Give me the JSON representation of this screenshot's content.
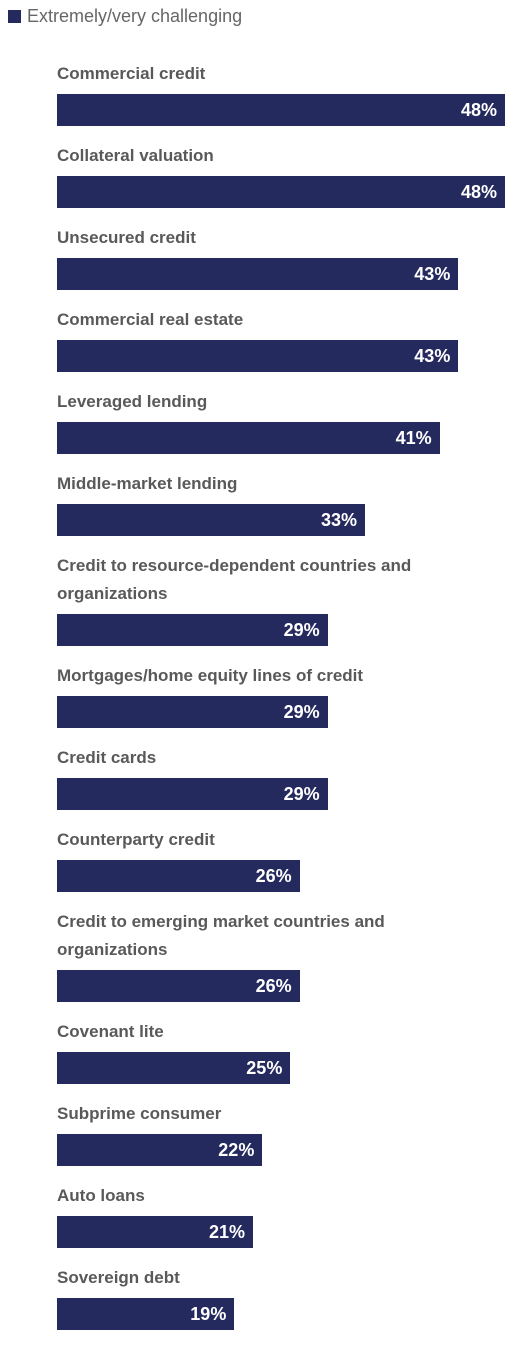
{
  "chart_data": {
    "type": "bar",
    "orientation": "horizontal",
    "categories": [
      "Commercial credit",
      "Collateral valuation",
      "Unsecured credit",
      "Commercial real estate",
      "Leveraged lending",
      "Middle-market lending",
      "Credit to resource-dependent countries and organizations",
      "Mortgages/home equity lines of credit",
      "Credit cards",
      "Counterparty credit",
      "Credit to emerging market countries and organizations",
      "Covenant lite",
      "Subprime consumer",
      "Auto loans",
      "Sovereign debt"
    ],
    "series": [
      {
        "name": "Extremely/very challenging",
        "color": "#252a5e",
        "values": [
          48,
          48,
          43,
          43,
          41,
          33,
          29,
          29,
          29,
          26,
          26,
          25,
          22,
          21,
          19
        ],
        "value_labels": [
          "48%",
          "48%",
          "43%",
          "43%",
          "41%",
          "33%",
          "29%",
          "29%",
          "29%",
          "26%",
          "26%",
          "25%",
          "22%",
          "21%",
          "19%"
        ]
      }
    ],
    "legend": "top-left"
  }
}
